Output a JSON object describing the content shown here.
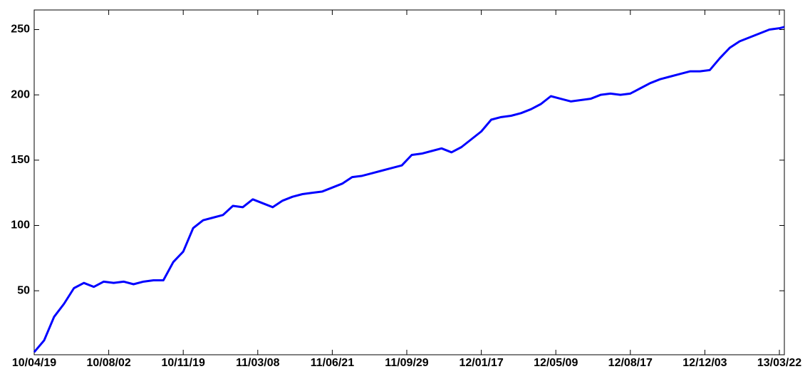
{
  "chart_data": {
    "type": "line",
    "x": [
      0,
      10,
      20,
      30,
      40,
      50,
      60,
      70,
      80,
      90,
      100,
      110,
      120,
      130,
      140,
      150,
      160,
      170,
      180,
      190,
      200,
      210,
      220,
      230,
      240,
      250,
      260,
      270,
      280,
      290,
      300,
      310,
      320,
      330,
      340,
      350,
      360,
      370,
      380,
      390,
      400,
      410,
      420,
      430,
      440,
      450,
      460,
      470,
      480,
      490,
      500,
      510,
      520,
      530,
      540,
      550,
      560,
      570,
      580,
      590,
      600,
      610,
      620,
      630,
      640,
      650,
      660,
      670,
      680,
      690,
      700,
      710,
      720,
      730,
      740,
      750,
      755
    ],
    "series": [
      {
        "color": "#0000ff",
        "values": [
          3,
          12,
          30,
          40,
          52,
          56,
          53,
          57,
          56,
          57,
          55,
          57,
          58,
          58,
          72,
          80,
          98,
          104,
          106,
          108,
          115,
          114,
          120,
          117,
          114,
          119,
          122,
          124,
          125,
          126,
          129,
          132,
          137,
          138,
          140,
          142,
          144,
          146,
          154,
          155,
          157,
          159,
          156,
          160,
          166,
          172,
          181,
          183,
          184,
          186,
          189,
          193,
          199,
          197,
          195,
          196,
          197,
          200,
          201,
          200,
          201,
          205,
          209,
          212,
          214,
          216,
          218,
          218,
          219,
          228,
          236,
          241,
          244,
          247,
          250,
          251,
          252
        ]
      }
    ],
    "xlim": [
      0,
      755
    ],
    "xticks": [
      {
        "value": 0,
        "label": "10/04/19"
      },
      {
        "value": 75,
        "label": "10/08/02"
      },
      {
        "value": 150,
        "label": "10/11/19"
      },
      {
        "value": 225,
        "label": "11/03/08"
      },
      {
        "value": 300,
        "label": "11/06/21"
      },
      {
        "value": 375,
        "label": "11/09/29"
      },
      {
        "value": 450,
        "label": "12/01/17"
      },
      {
        "value": 525,
        "label": "12/05/09"
      },
      {
        "value": 600,
        "label": "12/08/17"
      },
      {
        "value": 675,
        "label": "12/12/03"
      },
      {
        "value": 750,
        "label": "13/03/22"
      }
    ],
    "ylim": [
      1,
      265
    ],
    "yticks": [
      50,
      100,
      150,
      200,
      250
    ],
    "grid": false
  }
}
